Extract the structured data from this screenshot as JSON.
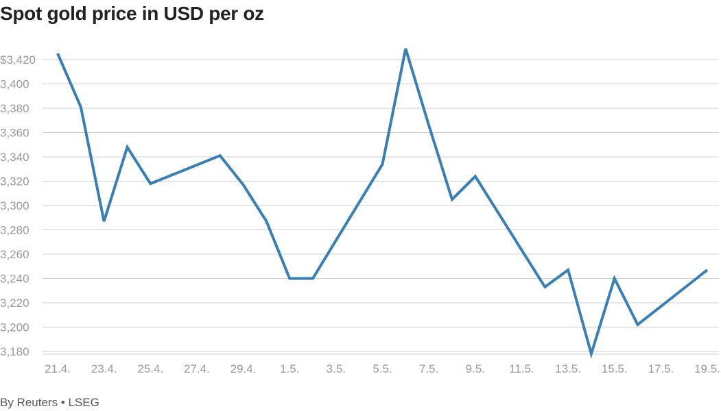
{
  "chart_data": {
    "type": "line",
    "title": "Spot gold price in USD per oz",
    "xlabel": "",
    "ylabel": "",
    "ylim": [
      3172,
      3440
    ],
    "y_ticks": [
      3180,
      3200,
      3220,
      3240,
      3260,
      3280,
      3300,
      3320,
      3340,
      3360,
      3380,
      3400,
      3420
    ],
    "y_tick_labels": [
      "3,180",
      "3,200",
      "3,220",
      "3,240",
      "3,260",
      "3,280",
      "3,300",
      "3,320",
      "3,340",
      "3,360",
      "3,380",
      "3,400",
      "$3,420"
    ],
    "x_range": [
      "2025-04-21",
      "2025-05-19"
    ],
    "x_tick_dates": [
      "2025-04-21",
      "2025-04-23",
      "2025-04-25",
      "2025-04-27",
      "2025-04-29",
      "2025-05-01",
      "2025-05-03",
      "2025-05-05",
      "2025-05-07",
      "2025-05-09",
      "2025-05-11",
      "2025-05-13",
      "2025-05-15",
      "2025-05-17",
      "2025-05-19"
    ],
    "x_tick_labels": [
      "21.4.",
      "23.4.",
      "25.4.",
      "27.4.",
      "29.4.",
      "1.5.",
      "3.5.",
      "5.5.",
      "7.5.",
      "9.5.",
      "11.5.",
      "13.5.",
      "15.5.",
      "17.5.",
      "19.5."
    ],
    "grid": true,
    "series": [
      {
        "color": "#3a7fb3",
        "points": [
          {
            "x": "2025-04-21",
            "y": 3425
          },
          {
            "x": "2025-04-22",
            "y": 3381
          },
          {
            "x": "2025-04-23",
            "y": 3287
          },
          {
            "x": "2025-04-24",
            "y": 3348
          },
          {
            "x": "2025-04-25",
            "y": 3318
          },
          {
            "x": "2025-04-28",
            "y": 3341
          },
          {
            "x": "2025-04-29",
            "y": 3317
          },
          {
            "x": "2025-04-30",
            "y": 3287
          },
          {
            "x": "2025-05-01",
            "y": 3240
          },
          {
            "x": "2025-05-02",
            "y": 3240
          },
          {
            "x": "2025-05-05",
            "y": 3334
          },
          {
            "x": "2025-05-06",
            "y": 3429
          },
          {
            "x": "2025-05-07",
            "y": 3366
          },
          {
            "x": "2025-05-08",
            "y": 3305
          },
          {
            "x": "2025-05-09",
            "y": 3324
          },
          {
            "x": "2025-05-12",
            "y": 3233
          },
          {
            "x": "2025-05-13",
            "y": 3247
          },
          {
            "x": "2025-05-14",
            "y": 3178
          },
          {
            "x": "2025-05-15",
            "y": 3240
          },
          {
            "x": "2025-05-16",
            "y": 3202
          },
          {
            "x": "2025-05-19",
            "y": 3247
          }
        ]
      }
    ]
  },
  "footer": {
    "source": "By Reuters • LSEG"
  }
}
